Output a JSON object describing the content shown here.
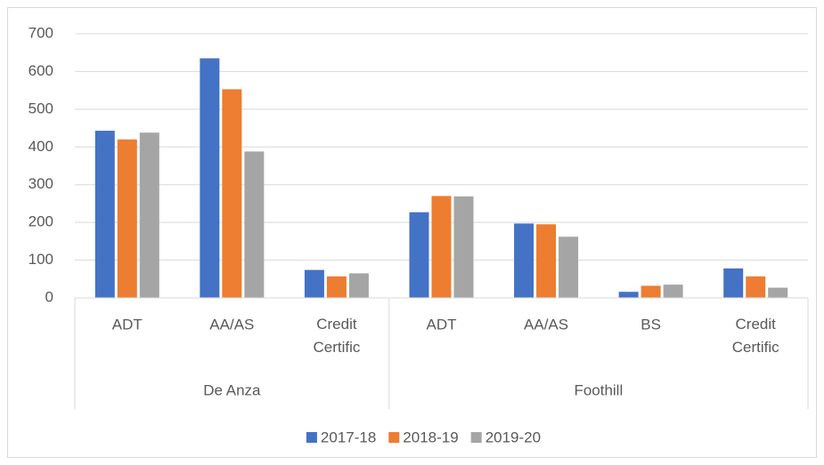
{
  "chart_data": {
    "type": "bar",
    "groups": [
      {
        "name": "De Anza",
        "categories": [
          "ADT",
          "AA/AS",
          "Credit Certific"
        ]
      },
      {
        "name": "Foothill",
        "categories": [
          "ADT",
          "AA/AS",
          "BS",
          "Credit Certific"
        ]
      }
    ],
    "series": [
      {
        "name": "2017-18",
        "color": "#4472c4",
        "values": [
          443,
          635,
          74,
          227,
          197,
          16,
          78
        ]
      },
      {
        "name": "2018-19",
        "color": "#ed7d31",
        "values": [
          420,
          553,
          57,
          270,
          195,
          32,
          57
        ]
      },
      {
        "name": "2019-20",
        "color": "#a5a5a5",
        "values": [
          438,
          388,
          65,
          269,
          162,
          35,
          27
        ]
      }
    ],
    "ylim": [
      0,
      700
    ],
    "yticks": [
      0,
      100,
      200,
      300,
      400,
      500,
      600,
      700
    ],
    "grid": true,
    "legend": "bottom"
  }
}
